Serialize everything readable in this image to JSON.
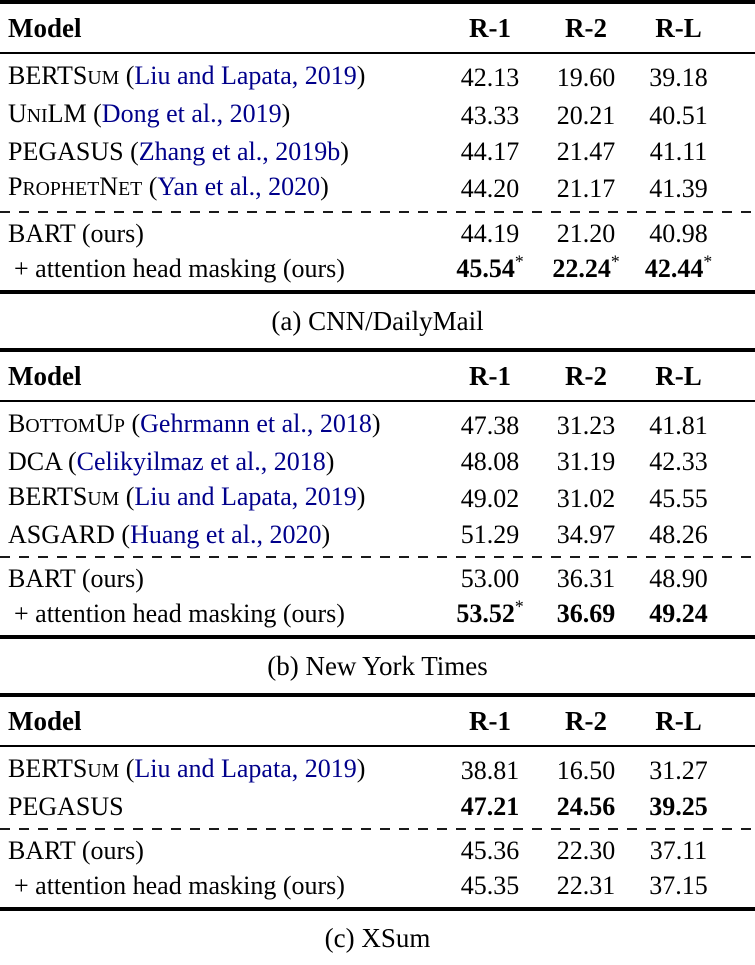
{
  "colors": {
    "citation_link": "#00008B",
    "rule": "#000000",
    "text": "#000000",
    "background": "#ffffff"
  },
  "tables": [
    {
      "caption": "(a) CNN/DailyMail",
      "columns": [
        "Model",
        "R-1",
        "R-2",
        "R-L"
      ],
      "groups": [
        {
          "rows": [
            {
              "name": "BERTSum",
              "sc": true,
              "cite": "Liu and Lapata, 2019",
              "values": [
                {
                  "v": "42.13",
                  "b": false,
                  "star": false
                },
                {
                  "v": "19.60",
                  "b": false,
                  "star": false
                },
                {
                  "v": "39.18",
                  "b": false,
                  "star": false
                }
              ]
            },
            {
              "name": "UniLM",
              "sc": true,
              "cite": "Dong et al., 2019",
              "values": [
                {
                  "v": "43.33",
                  "b": false,
                  "star": false
                },
                {
                  "v": "20.21",
                  "b": false,
                  "star": false
                },
                {
                  "v": "40.51",
                  "b": false,
                  "star": false
                }
              ]
            },
            {
              "name": "PEGASUS",
              "sc": true,
              "cite": "Zhang et al., 2019b",
              "values": [
                {
                  "v": "44.17",
                  "b": false,
                  "star": false
                },
                {
                  "v": "21.47",
                  "b": false,
                  "star": false
                },
                {
                  "v": "41.11",
                  "b": false,
                  "star": false
                }
              ]
            },
            {
              "name": "ProphetNet",
              "sc": true,
              "cite": "Yan et al., 2020",
              "values": [
                {
                  "v": "44.20",
                  "b": false,
                  "star": false
                },
                {
                  "v": "21.17",
                  "b": false,
                  "star": false
                },
                {
                  "v": "41.39",
                  "b": false,
                  "star": false
                }
              ]
            }
          ]
        },
        {
          "rows": [
            {
              "name": "BART",
              "sc": false,
              "suffix": " (ours)",
              "values": [
                {
                  "v": "44.19",
                  "b": false,
                  "star": false
                },
                {
                  "v": "21.20",
                  "b": false,
                  "star": false
                },
                {
                  "v": "40.98",
                  "b": false,
                  "star": false
                }
              ]
            },
            {
              "name": "+ attention head masking",
              "sc": false,
              "suffix": " (ours)",
              "indent": true,
              "values": [
                {
                  "v": "45.54",
                  "b": true,
                  "star": true
                },
                {
                  "v": "22.24",
                  "b": true,
                  "star": true
                },
                {
                  "v": "42.44",
                  "b": true,
                  "star": true
                }
              ]
            }
          ]
        }
      ]
    },
    {
      "caption": "(b) New York Times",
      "columns": [
        "Model",
        "R-1",
        "R-2",
        "R-L"
      ],
      "groups": [
        {
          "rows": [
            {
              "name": "BottomUp",
              "sc": true,
              "cite": "Gehrmann et al., 2018",
              "values": [
                {
                  "v": "47.38",
                  "b": false,
                  "star": false
                },
                {
                  "v": "31.23",
                  "b": false,
                  "star": false
                },
                {
                  "v": "41.81",
                  "b": false,
                  "star": false
                }
              ]
            },
            {
              "name": "DCA",
              "sc": true,
              "cite": "Celikyilmaz et al., 2018",
              "values": [
                {
                  "v": "48.08",
                  "b": false,
                  "star": false
                },
                {
                  "v": "31.19",
                  "b": false,
                  "star": false
                },
                {
                  "v": "42.33",
                  "b": false,
                  "star": false
                }
              ]
            },
            {
              "name": "BERTSum",
              "sc": true,
              "cite": "Liu and Lapata, 2019",
              "values": [
                {
                  "v": "49.02",
                  "b": false,
                  "star": false
                },
                {
                  "v": "31.02",
                  "b": false,
                  "star": false
                },
                {
                  "v": "45.55",
                  "b": false,
                  "star": false
                }
              ]
            },
            {
              "name": "ASGARD",
              "sc": true,
              "cite": "Huang et al., 2020",
              "values": [
                {
                  "v": "51.29",
                  "b": false,
                  "star": false
                },
                {
                  "v": "34.97",
                  "b": false,
                  "star": false
                },
                {
                  "v": "48.26",
                  "b": false,
                  "star": false
                }
              ]
            }
          ]
        },
        {
          "rows": [
            {
              "name": "BART",
              "sc": false,
              "suffix": " (ours)",
              "values": [
                {
                  "v": "53.00",
                  "b": false,
                  "star": false
                },
                {
                  "v": "36.31",
                  "b": false,
                  "star": false
                },
                {
                  "v": "48.90",
                  "b": false,
                  "star": false
                }
              ]
            },
            {
              "name": "+ attention head masking",
              "sc": false,
              "suffix": " (ours)",
              "indent": true,
              "values": [
                {
                  "v": "53.52",
                  "b": true,
                  "star": true
                },
                {
                  "v": "36.69",
                  "b": true,
                  "star": false
                },
                {
                  "v": "49.24",
                  "b": true,
                  "star": false
                }
              ]
            }
          ]
        }
      ]
    },
    {
      "caption": "(c) XSum",
      "columns": [
        "Model",
        "R-1",
        "R-2",
        "R-L"
      ],
      "groups": [
        {
          "rows": [
            {
              "name": "BERTSum",
              "sc": true,
              "cite": "Liu and Lapata, 2019",
              "values": [
                {
                  "v": "38.81",
                  "b": false,
                  "star": false
                },
                {
                  "v": "16.50",
                  "b": false,
                  "star": false
                },
                {
                  "v": "31.27",
                  "b": false,
                  "star": false
                }
              ]
            },
            {
              "name": "PEGASUS",
              "sc": true,
              "values": [
                {
                  "v": "47.21",
                  "b": true,
                  "star": false
                },
                {
                  "v": "24.56",
                  "b": true,
                  "star": false
                },
                {
                  "v": "39.25",
                  "b": true,
                  "star": false
                }
              ]
            }
          ]
        },
        {
          "rows": [
            {
              "name": "BART",
              "sc": false,
              "suffix": " (ours)",
              "values": [
                {
                  "v": "45.36",
                  "b": false,
                  "star": false
                },
                {
                  "v": "22.30",
                  "b": false,
                  "star": false
                },
                {
                  "v": "37.11",
                  "b": false,
                  "star": false
                }
              ]
            },
            {
              "name": "+ attention head masking",
              "sc": false,
              "suffix": " (ours)",
              "indent": true,
              "values": [
                {
                  "v": "45.35",
                  "b": false,
                  "star": false
                },
                {
                  "v": "22.31",
                  "b": false,
                  "star": false
                },
                {
                  "v": "37.15",
                  "b": false,
                  "star": false
                }
              ]
            }
          ]
        }
      ]
    }
  ]
}
